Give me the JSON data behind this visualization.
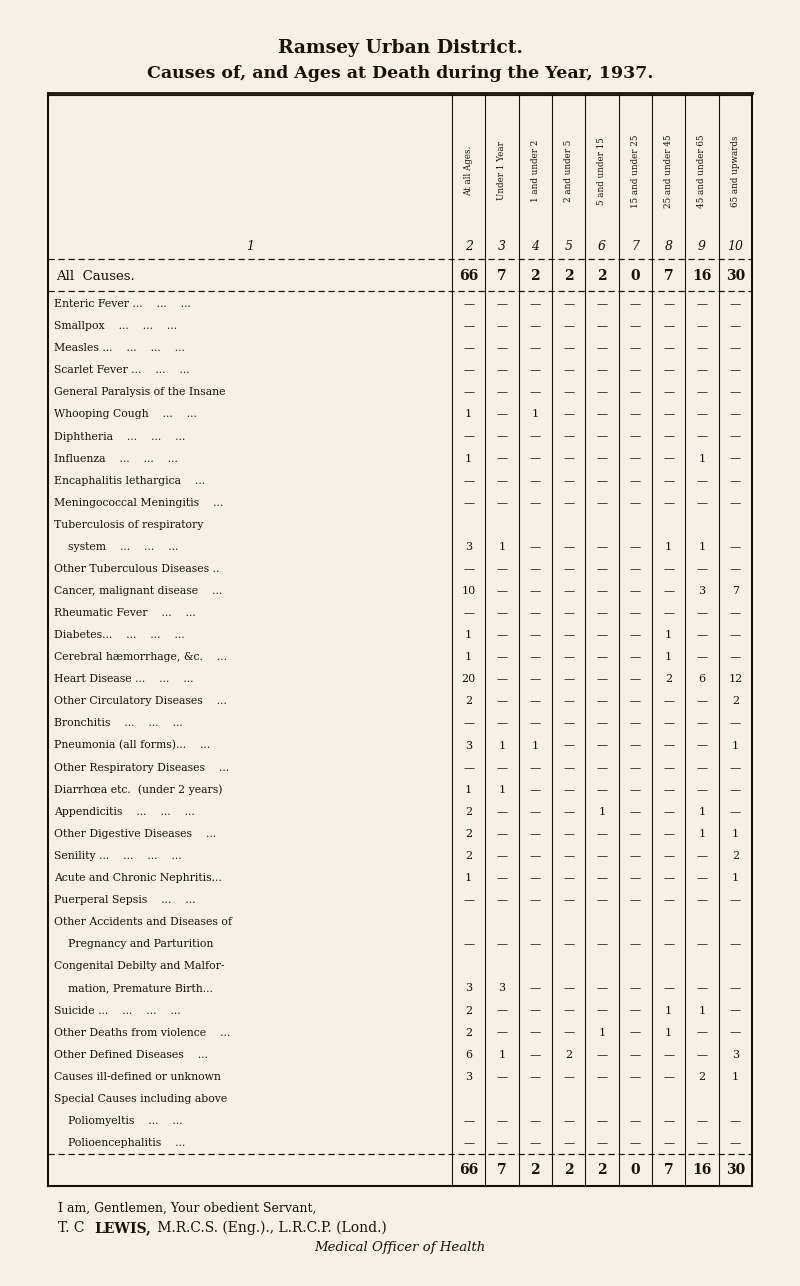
{
  "title1": "Ramsey Urban District.",
  "title2": "Causes of, and Ages at Death during the Year, 1937.",
  "bg_color": "#f5f0e8",
  "text_color": "#1a1208",
  "col_headers_rotated": [
    "At all Ages.",
    "Under 1 Year",
    "1 and under 2",
    "2 and under 5",
    "5 and under 15",
    "15 and under 25",
    "25 and under 45",
    "45 and under 65",
    "65 and upwards"
  ],
  "col_numbers_top": [
    "2",
    "3",
    "4",
    "5",
    "6",
    "7",
    "8",
    "9",
    "10"
  ],
  "all_causes_row": [
    "66",
    "7",
    "2",
    "2",
    "2",
    "0",
    "7",
    "16",
    "30"
  ],
  "col_numbers_bottom": [
    "66",
    "7",
    "2",
    "2",
    "2",
    "0",
    "7",
    "16",
    "30"
  ],
  "rows": [
    {
      "cause": "Enteric Fever ...    ...    ...",
      "vals": [
        "—",
        "—",
        "—",
        "—",
        "—",
        "—",
        "—",
        "—",
        "—"
      ]
    },
    {
      "cause": "Smallpox    ...    ...    ...",
      "vals": [
        "—",
        "—",
        "—",
        "—",
        "—",
        "—",
        "—",
        "—",
        "—"
      ]
    },
    {
      "cause": "Measles ...    ...    ...    ...",
      "vals": [
        "—",
        "—",
        "—",
        "—",
        "—",
        "—",
        "—",
        "—",
        "—"
      ]
    },
    {
      "cause": "Scarlet Fever ...    ...    ...",
      "vals": [
        "—",
        "—",
        "—",
        "—",
        "—",
        "—",
        "—",
        "—",
        "—"
      ]
    },
    {
      "cause": "General Paralysis of the Insane",
      "vals": [
        "—",
        "—",
        "—",
        "—",
        "—",
        "—",
        "—",
        "—",
        "—"
      ]
    },
    {
      "cause": "Whooping Cough    ...    ...",
      "vals": [
        "1",
        "—",
        "1",
        "—",
        "—",
        "—",
        "—",
        "—",
        "—"
      ]
    },
    {
      "cause": "Diphtheria    ...    ...    ...",
      "vals": [
        "—",
        "—",
        "—",
        "—",
        "—",
        "—",
        "—",
        "—",
        "—"
      ]
    },
    {
      "cause": "Influenza    ...    ...    ...",
      "vals": [
        "1",
        "—",
        "—",
        "—",
        "—",
        "—",
        "—",
        "1",
        "—"
      ]
    },
    {
      "cause": "Encaphalitis lethargica    ...",
      "vals": [
        "—",
        "—",
        "—",
        "—",
        "—",
        "—",
        "—",
        "—",
        "—"
      ]
    },
    {
      "cause": "Meningococcal Meningitis    ...",
      "vals": [
        "—",
        "—",
        "—",
        "—",
        "—",
        "—",
        "—",
        "—",
        "—"
      ]
    },
    {
      "cause": "Tuberculosis of respiratory",
      "vals": [
        "",
        "",
        "",
        "",
        "",
        "",
        "",
        "",
        ""
      ],
      "continuation": true
    },
    {
      "cause": "    system    ...    ...    ...",
      "vals": [
        "3",
        "1",
        "—",
        "—",
        "—",
        "—",
        "1",
        "1",
        "—"
      ]
    },
    {
      "cause": "Other Tuberculous Diseases ..",
      "vals": [
        "—",
        "—",
        "—",
        "—",
        "—",
        "—",
        "—",
        "—",
        "—"
      ]
    },
    {
      "cause": "Cancer, malignant disease    ...",
      "vals": [
        "10",
        "—",
        "—",
        "—",
        "—",
        "—",
        "—",
        "3",
        "7"
      ]
    },
    {
      "cause": "Rheumatic Fever    ...    ...",
      "vals": [
        "—",
        "—",
        "—",
        "—",
        "—",
        "—",
        "—",
        "—",
        "—"
      ]
    },
    {
      "cause": "Diabetes...    ...    ...    ...",
      "vals": [
        "1",
        "—",
        "—",
        "—",
        "—",
        "—",
        "1",
        "—",
        "—"
      ]
    },
    {
      "cause": "Cerebral hæmorrhage, &c.    ...",
      "vals": [
        "1",
        "—",
        "—",
        "—",
        "—",
        "—",
        "1",
        "—",
        "—"
      ]
    },
    {
      "cause": "Heart Disease ...    ...    ...",
      "vals": [
        "20",
        "—",
        "—",
        "—",
        "—",
        "—",
        "2",
        "6",
        "12"
      ]
    },
    {
      "cause": "Other Circulatory Diseases    ...",
      "vals": [
        "2",
        "—",
        "—",
        "—",
        "—",
        "—",
        "—",
        "—",
        "2"
      ]
    },
    {
      "cause": "Bronchitis    ...    ...    ...",
      "vals": [
        "—",
        "—",
        "—",
        "—",
        "—",
        "—",
        "—",
        "—",
        "—"
      ]
    },
    {
      "cause": "Pneumonia (all forms)...    ...",
      "vals": [
        "3",
        "1",
        "1",
        "—",
        "—",
        "—",
        "—",
        "—",
        "1"
      ]
    },
    {
      "cause": "Other Respiratory Diseases    ...",
      "vals": [
        "—",
        "—",
        "—",
        "—",
        "—",
        "—",
        "—",
        "—",
        "—"
      ]
    },
    {
      "cause": "Diarrhœa etc.  (under 2 years)",
      "vals": [
        "1",
        "1",
        "—",
        "—",
        "—",
        "—",
        "—",
        "—",
        "—"
      ]
    },
    {
      "cause": "Appendicitis    ...    ...    ...",
      "vals": [
        "2",
        "—",
        "—",
        "—",
        "1",
        "—",
        "—",
        "1",
        "—"
      ]
    },
    {
      "cause": "Other Digestive Diseases    ...",
      "vals": [
        "2",
        "—",
        "—",
        "—",
        "—",
        "—",
        "—",
        "1",
        "1"
      ]
    },
    {
      "cause": "Senility ...    ...    ...    ...",
      "vals": [
        "2",
        "—",
        "—",
        "—",
        "—",
        "—",
        "—",
        "—",
        "2"
      ]
    },
    {
      "cause": "Acute and Chronic Nephritis...",
      "vals": [
        "1",
        "—",
        "—",
        "—",
        "—",
        "—",
        "—",
        "—",
        "1"
      ]
    },
    {
      "cause": "Puerperal Sepsis    ...    ...",
      "vals": [
        "—",
        "—",
        "—",
        "—",
        "—",
        "—",
        "—",
        "—",
        "—"
      ]
    },
    {
      "cause": "Other Accidents and Diseases of",
      "vals": [
        "",
        "",
        "",
        "",
        "",
        "",
        "",
        "",
        ""
      ],
      "continuation": true
    },
    {
      "cause": "    Pregnancy and Parturition",
      "vals": [
        "—",
        "—",
        "—",
        "—",
        "—",
        "—",
        "—",
        "—",
        "—"
      ]
    },
    {
      "cause": "Congenital Debilty and Malfor-",
      "vals": [
        "",
        "",
        "",
        "",
        "",
        "",
        "",
        "",
        ""
      ],
      "continuation": true
    },
    {
      "cause": "    mation, Premature Birth...",
      "vals": [
        "3",
        "3",
        "—",
        "—",
        "—",
        "—",
        "—",
        "—",
        "—"
      ]
    },
    {
      "cause": "Suicide ...    ...    ...    ...",
      "vals": [
        "2",
        "—",
        "—",
        "—",
        "—",
        "—",
        "1",
        "1",
        "—"
      ]
    },
    {
      "cause": "Other Deaths from violence    ...",
      "vals": [
        "2",
        "—",
        "—",
        "—",
        "1",
        "—",
        "1",
        "—",
        "—"
      ]
    },
    {
      "cause": "Other Defined Diseases    ...",
      "vals": [
        "6",
        "1",
        "—",
        "2",
        "—",
        "—",
        "—",
        "—",
        "3"
      ]
    },
    {
      "cause": "Causes ill-defined or unknown",
      "vals": [
        "3",
        "—",
        "—",
        "—",
        "—",
        "—",
        "—",
        "2",
        "1"
      ]
    },
    {
      "cause": "Special Causes including above",
      "vals": [
        "",
        "",
        "",
        "",
        "",
        "",
        "",
        "",
        ""
      ],
      "continuation": true
    },
    {
      "cause": "    Poliomyeltis    ...    ...",
      "vals": [
        "—",
        "—",
        "—",
        "—",
        "—",
        "—",
        "—",
        "—",
        "—"
      ]
    },
    {
      "cause": "    Polioencephalitis    ...",
      "vals": [
        "—",
        "—",
        "—",
        "—",
        "—",
        "—",
        "—",
        "—",
        "—"
      ]
    }
  ],
  "footer_text1": "I am, Gentlemen, Your obedient Servant,",
  "footer_text2": "T. C  LEWIS, M.R.C.S. (Eng.)., L.R.C.P. (Lond.)",
  "footer_text3": "Medical Officer of Health"
}
